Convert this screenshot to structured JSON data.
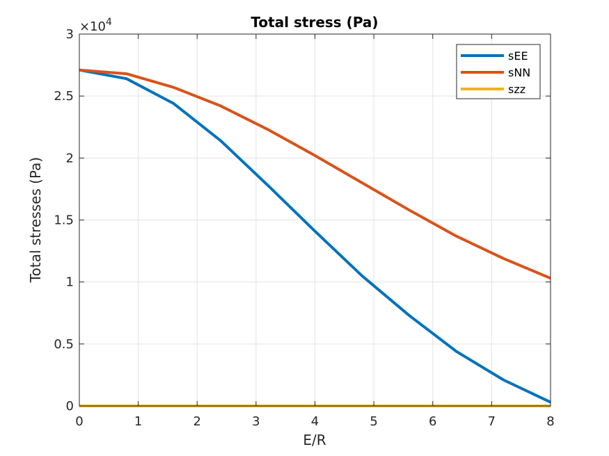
{
  "chart_data": {
    "type": "line",
    "title": "Total stress (Pa)",
    "xlabel": "E/R",
    "ylabel": "Total stresses (Pa)",
    "y_exponent_label": "×10",
    "y_exponent_power": "4",
    "xlim": [
      0,
      8
    ],
    "ylim": [
      0,
      30000
    ],
    "x_ticks": [
      0,
      1,
      2,
      3,
      4,
      5,
      6,
      7,
      8
    ],
    "x_tick_labels": [
      "0",
      "1",
      "2",
      "3",
      "4",
      "5",
      "6",
      "7",
      "8"
    ],
    "y_ticks": [
      0,
      5000,
      10000,
      15000,
      20000,
      25000,
      30000
    ],
    "y_tick_labels": [
      "0",
      "0.5",
      "1",
      "1.5",
      "2",
      "2.5",
      "3"
    ],
    "grid": true,
    "legend_position": "top-right",
    "series": [
      {
        "name": "sEE",
        "color": "#0072BD",
        "x": [
          0,
          0.8,
          1.6,
          2.4,
          3.2,
          4.0,
          4.8,
          5.6,
          6.4,
          7.2,
          8.0
        ],
        "values": [
          27100,
          26400,
          24400,
          21400,
          17800,
          14100,
          10500,
          7300,
          4400,
          2100,
          300
        ]
      },
      {
        "name": "sNN",
        "color": "#D95319",
        "x": [
          0,
          0.8,
          1.6,
          2.4,
          3.2,
          4.0,
          4.8,
          5.6,
          6.4,
          7.2,
          8.0
        ],
        "values": [
          27100,
          26800,
          25700,
          24200,
          22300,
          20200,
          18000,
          15800,
          13700,
          11900,
          10300
        ]
      },
      {
        "name": "szz",
        "color": "#EDB120",
        "x": [
          0,
          8.0
        ],
        "values": [
          0,
          0
        ]
      }
    ]
  }
}
